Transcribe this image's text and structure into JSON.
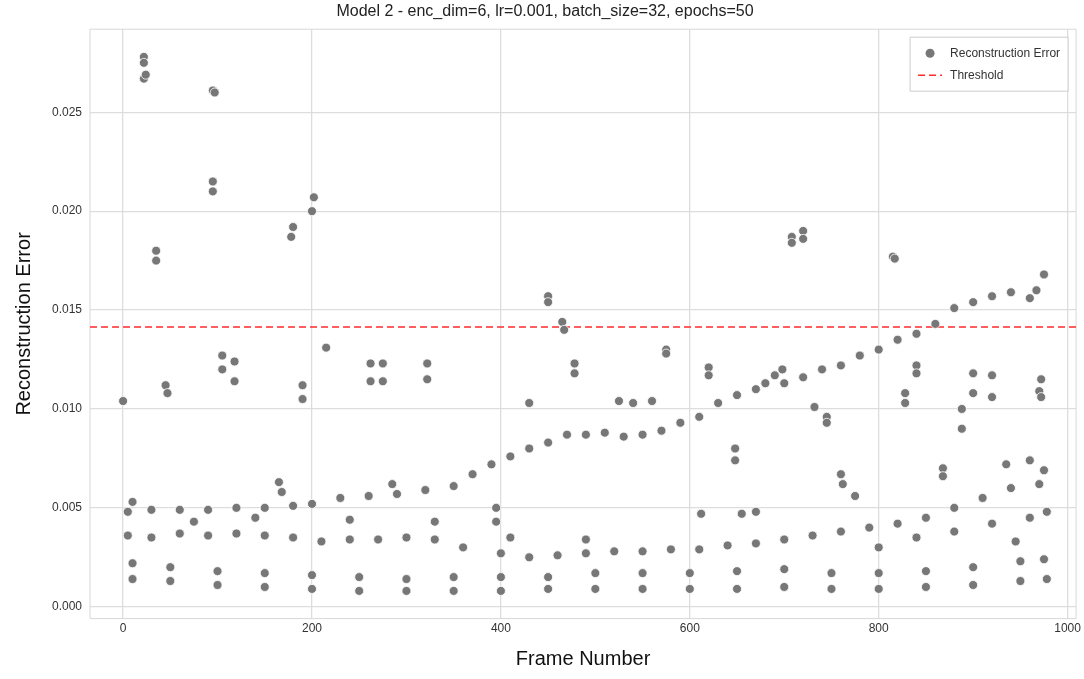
{
  "chart_data": {
    "type": "scatter",
    "title": "Model 2 - enc_dim=6, lr=0.001, batch_size=32, epochs=50",
    "xlabel": "Frame Number",
    "ylabel": "Reconstruction Error",
    "xlim": [
      -35,
      1009
    ],
    "ylim": [
      -0.0006,
      0.0292
    ],
    "xticks": [
      0,
      200,
      400,
      600,
      800,
      1000
    ],
    "yticks": [
      {
        "value": 0,
        "label": "0.000"
      },
      {
        "value": 0.005,
        "label": "0.005"
      },
      {
        "value": 0.01,
        "label": "0.010"
      },
      {
        "value": 0.015,
        "label": "0.015"
      },
      {
        "value": 0.02,
        "label": "0.020"
      },
      {
        "value": 0.025,
        "label": "0.025"
      }
    ],
    "grid": true,
    "legend": "top right",
    "marker": "circle",
    "ref_lines": [
      {
        "axis": "y",
        "value": 0.01414,
        "label": "Threshold",
        "color": "#ff2a2a",
        "line_style": "dashed"
      }
    ],
    "series": [
      {
        "name": "Reconstruction Error",
        "color": "#777777",
        "x": [
          0,
          22,
          22,
          22,
          24,
          35,
          35,
          45,
          47,
          95,
          97,
          95,
          95,
          105,
          105,
          118,
          118,
          180,
          178,
          190,
          190,
          202,
          200,
          215,
          262,
          262,
          275,
          275,
          322,
          322,
          430,
          450,
          450,
          465,
          467,
          478,
          478,
          525,
          540,
          560,
          575,
          575,
          620,
          620,
          648,
          648,
          680,
          690,
          698,
          708,
          708,
          720,
          720,
          732,
          745,
          745,
          815,
          817,
          828,
          828,
          840,
          840,
          888,
          888,
          900,
          900,
          920,
          920,
          970,
          972,
          972,
          5,
          30,
          60,
          90,
          120,
          150,
          180,
          200,
          230,
          260,
          290,
          320,
          350,
          370,
          390,
          410,
          430,
          450,
          470,
          490,
          510,
          530,
          550,
          570,
          590,
          610,
          630,
          650,
          670,
          700,
          720,
          740,
          760,
          780,
          800,
          820,
          840,
          860,
          880,
          900,
          920,
          940,
          960,
          967,
          975,
          5,
          30,
          60,
          90,
          120,
          150,
          180,
          210,
          240,
          270,
          300,
          330,
          360,
          400,
          430,
          460,
          490,
          520,
          550,
          580,
          610,
          640,
          670,
          700,
          730,
          760,
          790,
          820,
          850,
          880,
          910,
          940,
          970,
          800,
          840,
          880,
          920,
          960,
          978,
          10,
          75,
          165,
          168,
          140,
          240,
          285,
          330,
          395,
          395,
          410,
          490,
          612,
          655,
          670,
          760,
          762,
          775,
          868,
          868,
          935,
          960,
          975,
          945,
          10,
          50,
          100,
          150,
          200,
          250,
          300,
          350,
          400,
          450,
          500,
          550,
          600,
          650,
          700,
          750,
          800,
          850,
          900,
          950,
          975,
          10,
          50,
          100,
          150,
          200,
          250,
          300,
          350,
          400,
          450,
          500,
          550,
          600,
          650,
          700,
          750,
          800,
          850,
          900,
          950,
          978
        ],
        "values": [
          0.0104,
          0.0278,
          0.0275,
          0.0267,
          0.0269,
          0.018,
          0.0175,
          0.0112,
          0.0108,
          0.0261,
          0.026,
          0.0215,
          0.021,
          0.0127,
          0.012,
          0.0124,
          0.0114,
          0.0192,
          0.0187,
          0.0112,
          0.0105,
          0.0207,
          0.02,
          0.0131,
          0.0123,
          0.0114,
          0.0123,
          0.0114,
          0.0123,
          0.0115,
          0.0103,
          0.0157,
          0.0154,
          0.0144,
          0.014,
          0.0123,
          0.0118,
          0.0104,
          0.0103,
          0.0104,
          0.013,
          0.0128,
          0.0121,
          0.0117,
          0.008,
          0.0074,
          0.0113,
          0.0117,
          0.012,
          0.0187,
          0.0184,
          0.019,
          0.0186,
          0.0101,
          0.0096,
          0.0093,
          0.0177,
          0.0176,
          0.0108,
          0.0103,
          0.0122,
          0.0118,
          0.01,
          0.009,
          0.0118,
          0.0108,
          0.0117,
          0.0106,
          0.0109,
          0.0115,
          0.0106,
          0.0048,
          0.0049,
          0.0049,
          0.0049,
          0.005,
          0.005,
          0.0051,
          0.0052,
          0.0055,
          0.0056,
          0.0057,
          0.0059,
          0.0061,
          0.0067,
          0.0072,
          0.0076,
          0.008,
          0.0083,
          0.0087,
          0.0087,
          0.0088,
          0.0086,
          0.0087,
          0.0089,
          0.0093,
          0.0096,
          0.0103,
          0.0107,
          0.011,
          0.0113,
          0.0116,
          0.012,
          0.0122,
          0.0127,
          0.013,
          0.0135,
          0.0138,
          0.0143,
          0.0151,
          0.0154,
          0.0157,
          0.0159,
          0.0156,
          0.016,
          0.0168,
          0.0036,
          0.0035,
          0.0037,
          0.0036,
          0.0037,
          0.0036,
          0.0035,
          0.0033,
          0.0034,
          0.0034,
          0.0035,
          0.0034,
          0.003,
          0.0027,
          0.0025,
          0.0026,
          0.0027,
          0.0028,
          0.0028,
          0.0029,
          0.0029,
          0.0031,
          0.0032,
          0.0034,
          0.0036,
          0.0038,
          0.004,
          0.0042,
          0.0045,
          0.005,
          0.0055,
          0.006,
          0.0062,
          0.003,
          0.0035,
          0.0038,
          0.0042,
          0.0045,
          0.0048,
          0.0053,
          0.0043,
          0.0063,
          0.0058,
          0.0045,
          0.0044,
          0.0062,
          0.0043,
          0.005,
          0.0043,
          0.0035,
          0.0034,
          0.0047,
          0.0047,
          0.0048,
          0.0067,
          0.0062,
          0.0056,
          0.007,
          0.0066,
          0.0072,
          0.0074,
          0.0069,
          0.0033,
          0.0022,
          0.002,
          0.0018,
          0.0017,
          0.0016,
          0.0015,
          0.0014,
          0.0015,
          0.0015,
          0.0015,
          0.0017,
          0.0017,
          0.0017,
          0.0018,
          0.0019,
          0.0017,
          0.0017,
          0.0018,
          0.002,
          0.0023,
          0.0024,
          0.0014,
          0.0013,
          0.0011,
          0.001,
          0.0009,
          0.0008,
          0.0008,
          0.0008,
          0.0008,
          0.0009,
          0.0009,
          0.0009,
          0.0009,
          0.0009,
          0.001,
          0.0009,
          0.0009,
          0.001,
          0.0011,
          0.0013,
          0.0014
        ]
      }
    ]
  }
}
